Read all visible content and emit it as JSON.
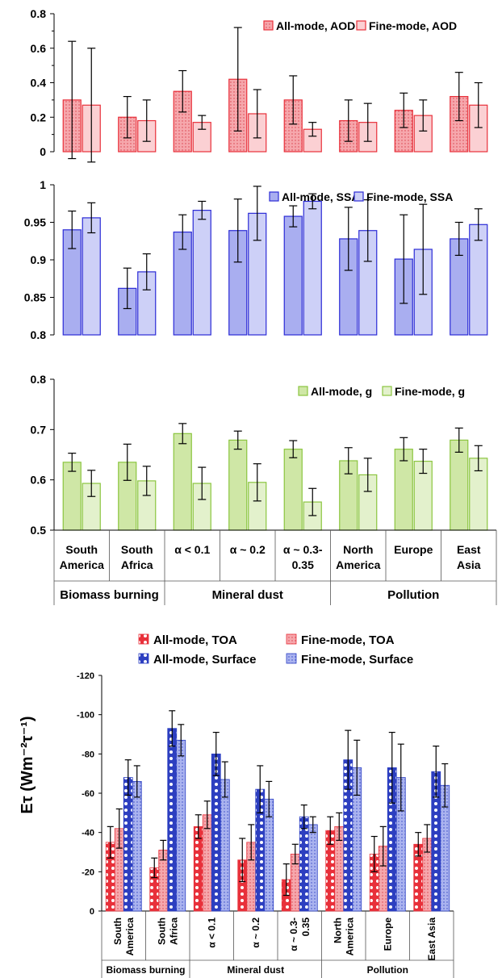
{
  "chart_data": [
    {
      "type": "bar",
      "categories": [
        "South America",
        "South Africa",
        "α < 0.1",
        "α ~ 0.2",
        "α ~ 0.3-0.35",
        "North America",
        "Europe",
        "East Asia"
      ],
      "ylim": [
        0,
        0.8
      ],
      "yticks": [
        "0",
        "0.2",
        "0.4",
        "0.6",
        "0.8"
      ],
      "legend_position": "top-right",
      "series": [
        {
          "name": "All-mode, AOD",
          "color": "#e8303a",
          "fill": "#f5a3a8",
          "values": [
            0.3,
            0.2,
            0.35,
            0.42,
            0.3,
            0.18,
            0.24,
            0.32
          ],
          "error": [
            0.34,
            0.12,
            0.12,
            0.3,
            0.14,
            0.12,
            0.1,
            0.14
          ]
        },
        {
          "name": "Fine-mode, AOD",
          "color": "#e8303a",
          "fill": "#fbd0d3",
          "values": [
            0.27,
            0.18,
            0.17,
            0.22,
            0.13,
            0.17,
            0.21,
            0.27
          ],
          "error": [
            0.33,
            0.12,
            0.04,
            0.14,
            0.04,
            0.11,
            0.09,
            0.13
          ]
        }
      ]
    },
    {
      "type": "bar",
      "categories": [
        "South America",
        "South Africa",
        "α < 0.1",
        "α ~ 0.2",
        "α ~ 0.3-0.35",
        "North America",
        "Europe",
        "East Asia"
      ],
      "ylim": [
        0.8,
        1.0
      ],
      "yticks": [
        "0.8",
        "0.85",
        "0.9",
        "0.95",
        "1"
      ],
      "legend_position": "top-right",
      "series": [
        {
          "name": "All-mode, SSA",
          "color": "#2b2bd6",
          "fill": "#a9aef0",
          "values": [
            0.94,
            0.862,
            0.937,
            0.939,
            0.958,
            0.928,
            0.901,
            0.928
          ],
          "error": [
            0.025,
            0.027,
            0.023,
            0.042,
            0.014,
            0.042,
            0.059,
            0.022
          ]
        },
        {
          "name": "Fine-mode, SSA",
          "color": "#2b2bd6",
          "fill": "#cdd0f7",
          "values": [
            0.956,
            0.884,
            0.966,
            0.962,
            0.978,
            0.939,
            0.914,
            0.947
          ],
          "error": [
            0.02,
            0.024,
            0.012,
            0.036,
            0.01,
            0.041,
            0.06,
            0.021
          ]
        }
      ]
    },
    {
      "type": "bar",
      "categories": [
        "South America",
        "South Africa",
        "α < 0.1",
        "α ~ 0.2",
        "α ~ 0.3-0.35",
        "North America",
        "Europe",
        "East Asia"
      ],
      "ylim": [
        0.5,
        0.8
      ],
      "yticks": [
        "0.5",
        "0.6",
        "0.7",
        "0.8"
      ],
      "legend_position": "top-right",
      "series": [
        {
          "name": "All-mode, g",
          "color": "#8bc53f",
          "fill": "#cfe7a6",
          "values": [
            0.635,
            0.635,
            0.692,
            0.679,
            0.661,
            0.638,
            0.661,
            0.679
          ],
          "error": [
            0.018,
            0.036,
            0.02,
            0.018,
            0.017,
            0.026,
            0.023,
            0.024
          ]
        },
        {
          "name": "Fine-mode, g",
          "color": "#8bc53f",
          "fill": "#e3f1cc",
          "values": [
            0.593,
            0.598,
            0.593,
            0.595,
            0.556,
            0.61,
            0.637,
            0.643
          ],
          "error": [
            0.026,
            0.029,
            0.032,
            0.037,
            0.027,
            0.033,
            0.024,
            0.025
          ]
        }
      ]
    },
    {
      "type": "bar",
      "categories": [
        "South America",
        "South Africa",
        "α < 0.1",
        "α ~ 0.2",
        "α ~ 0.3-0.35",
        "North America",
        "Europe",
        "East Asia"
      ],
      "ylabel": "Eτ (Wm⁻²τ⁻¹)",
      "ylim": [
        0,
        -120
      ],
      "yticks": [
        "-120",
        "-100",
        "-80",
        "-60",
        "-40",
        "-20",
        "0"
      ],
      "legend_position": "top",
      "series": [
        {
          "name": "All-mode, TOA",
          "color": "#e8303a",
          "fill": "#ee3b44",
          "values": [
            -35,
            -22,
            -43,
            -26,
            -16,
            -41,
            -29,
            -34
          ],
          "error": [
            8,
            5,
            6,
            11,
            8,
            7,
            9,
            6
          ]
        },
        {
          "name": "Fine-mode, TOA",
          "color": "#e8303a",
          "fill": "#f7b3b7",
          "values": [
            -42,
            -31,
            -49,
            -35,
            -29,
            -43,
            -33,
            -37
          ],
          "error": [
            10,
            5,
            7,
            9,
            5,
            7,
            10,
            7
          ]
        },
        {
          "name": "All-mode, Surface",
          "color": "#2b3fc4",
          "fill": "#3446c8",
          "values": [
            -68,
            -93,
            -80,
            -62,
            -48,
            -77,
            -73,
            -71
          ],
          "error": [
            9,
            9,
            11,
            12,
            6,
            15,
            18,
            13
          ]
        },
        {
          "name": "Fine-mode, Surface",
          "color": "#2b3fc4",
          "fill": "#a8b4ee",
          "values": [
            -66,
            -87,
            -67,
            -57,
            -44,
            -73,
            -68,
            -64
          ],
          "error": [
            8,
            8,
            9,
            9,
            4,
            14,
            17,
            11
          ]
        }
      ]
    }
  ],
  "x_axis_top": {
    "labels": [
      [
        "South",
        "America"
      ],
      [
        "South",
        "Africa"
      ],
      [
        "α < 0.1"
      ],
      [
        "α ~ 0.2"
      ],
      [
        "α ~ 0.3-",
        "0.35"
      ],
      [
        "North",
        "America"
      ],
      [
        "Europe"
      ],
      [
        "East",
        "Asia"
      ]
    ],
    "groups": [
      "Biomass burning",
      "Mineral dust",
      "Pollution"
    ]
  },
  "x_axis_bottom": {
    "labels": [
      [
        "South",
        "America"
      ],
      [
        "South",
        "Africa"
      ],
      [
        "α < 0.1"
      ],
      [
        "α ~ 0.2"
      ],
      [
        "α ~ 0.3-",
        "0.35"
      ],
      [
        "North",
        "America"
      ],
      [
        "Europe"
      ],
      [
        "East Asia"
      ]
    ],
    "groups": [
      "Biomass burning",
      "Mineral dust",
      "Pollution"
    ]
  }
}
